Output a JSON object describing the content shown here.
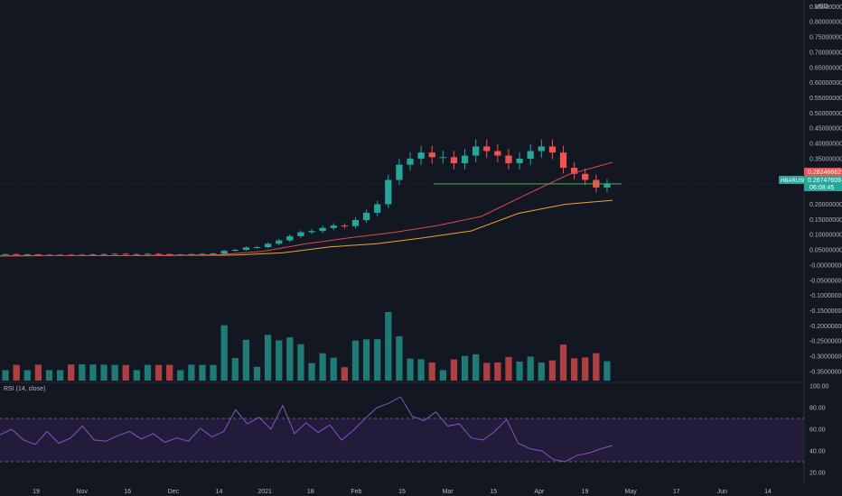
{
  "chart_data": {
    "type": "candlestick",
    "currency_label": "USD",
    "symbol_tag": "HBARUSD",
    "last_price_label": "0.26747609",
    "countdown_label": "06:08:45",
    "ma_price_label": "0.28246662",
    "price_axis_ticks": [
      "0.85000000",
      "0.80000000",
      "0.75000000",
      "0.70000000",
      "0.65000000",
      "0.60000000",
      "0.55000000",
      "0.50000000",
      "0.45000000",
      "0.40000000",
      "0.35000000",
      "0.30000000",
      "0.25000000",
      "0.20000000",
      "0.15000000",
      "0.10000000",
      "0.05000000",
      "-0.00000000",
      "-0.05000000",
      "-0.10000000",
      "-0.15000000",
      "-0.20000000",
      "-0.25000000",
      "-0.30000000",
      "-0.35000000"
    ],
    "price_axis_values": [
      0.85,
      0.8,
      0.75,
      0.7,
      0.65,
      0.6,
      0.55,
      0.5,
      0.45,
      0.4,
      0.35,
      0.3,
      0.25,
      0.2,
      0.15,
      0.1,
      0.05,
      0.0,
      -0.05,
      -0.1,
      -0.15,
      -0.2,
      -0.25,
      -0.3,
      -0.35
    ],
    "time_axis_labels": [
      "19",
      "Nov",
      "16",
      "Dec",
      "14",
      "2021",
      "18",
      "Feb",
      "15",
      "Mar",
      "15",
      "Apr",
      "19",
      "May",
      "17",
      "Jun",
      "14"
    ],
    "ylim": [
      -0.38,
      0.86
    ],
    "candles_close_approx": [
      0.036,
      0.035,
      0.035,
      0.034,
      0.034,
      0.034,
      0.033,
      0.034,
      0.035,
      0.036,
      0.037,
      0.036,
      0.036,
      0.037,
      0.036,
      0.035,
      0.035,
      0.036,
      0.037,
      0.038,
      0.047,
      0.05,
      0.058,
      0.059,
      0.07,
      0.081,
      0.095,
      0.108,
      0.112,
      0.122,
      0.13,
      0.128,
      0.148,
      0.172,
      0.2,
      0.28,
      0.33,
      0.35,
      0.37,
      0.355,
      0.355,
      0.335,
      0.36,
      0.39,
      0.375,
      0.36,
      0.335,
      0.35,
      0.375,
      0.39,
      0.37,
      0.32,
      0.3,
      0.28,
      0.255,
      0.267
    ],
    "ma_slow_levels": [
      0.03,
      0.031,
      0.031,
      0.031,
      0.032,
      0.033,
      0.04,
      0.06,
      0.07,
      0.09,
      0.112,
      0.17,
      0.2,
      0.213
    ],
    "ma_mid_levels": [
      0.03,
      0.031,
      0.031,
      0.031,
      0.032,
      0.034,
      0.045,
      0.07,
      0.09,
      0.107,
      0.13,
      0.16,
      0.23,
      0.298,
      0.338
    ],
    "volume_series_note": "",
    "rsi": {
      "label": "RSI (14, close)",
      "axis_ticks": [
        "100.00",
        "80.00",
        "60.00",
        "40.00",
        "20.00"
      ],
      "axis_values": [
        100,
        80,
        60,
        40,
        20
      ],
      "upper_band": 70,
      "lower_band": 30,
      "values": [
        55,
        60,
        50,
        46,
        58,
        47,
        52,
        63,
        50,
        49,
        54,
        58,
        51,
        56,
        48,
        52,
        49,
        61,
        53,
        58,
        78,
        65,
        71,
        60,
        82,
        56,
        66,
        57,
        64,
        50,
        59,
        70,
        80,
        84,
        90,
        72,
        68,
        76,
        63,
        65,
        52,
        50,
        58,
        69,
        47,
        42,
        40,
        32,
        30,
        36,
        38,
        42,
        45
      ],
      "ylim": [
        10,
        100
      ]
    },
    "colors": {
      "background": "#131722",
      "bull": "#26a69a",
      "bear": "#ef5350",
      "ma_slow": "#f0a133",
      "ma_mid": "#d84a4a",
      "rsi_line": "#7e57c2",
      "rsi_band": "#2a1e45",
      "hline": "#4caf50"
    }
  }
}
